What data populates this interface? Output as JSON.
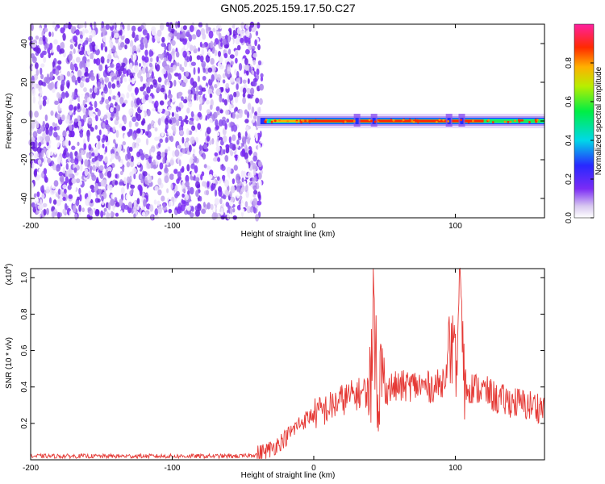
{
  "title": "GN05.2025.159.17.50.C27",
  "colors": {
    "signal": "#ff3333",
    "line": "#e53935",
    "noise": "#7b2cf5"
  },
  "chart_data": [
    {
      "type": "heatmap",
      "xlabel": "Height of straight line (km)",
      "ylabel": "Frequency (Hz)",
      "xlim": [
        -200,
        163
      ],
      "ylim": [
        -50,
        50
      ],
      "x_ticks": [
        "-200",
        "-100",
        "0",
        "100"
      ],
      "y_ticks": [
        "-40",
        "-20",
        "0",
        "20",
        "40"
      ],
      "colorbar": {
        "label": "Normalized spectral amplitude",
        "range": [
          0,
          1
        ],
        "ticks": [
          "0.0",
          "0.2",
          "0.4",
          "0.6",
          "0.8"
        ]
      },
      "noise_region_x": [
        -200,
        -40
      ],
      "signal_track": {
        "x_start": -40,
        "x_end": 163,
        "freq_hz": 0,
        "peak_band_x": [
          -10,
          120
        ]
      }
    },
    {
      "type": "line",
      "xlabel": "Height of straight line (km)",
      "ylabel": "SNR (10 * v/v)",
      "exponent_label": "(x10",
      "exponent_sup": "4",
      "exponent_close": ")",
      "xlim": [
        -200,
        163
      ],
      "ylim": [
        0,
        1.05
      ],
      "x_ticks": [
        "-200",
        "-100",
        "0",
        "100"
      ],
      "y_ticks": [
        "0.2",
        "0.4",
        "0.6",
        "0.8",
        "1.0"
      ],
      "series": [
        {
          "x": [
            -200,
            -150,
            -100,
            -50,
            -40,
            -30,
            -20,
            -10,
            0,
            10,
            20,
            30,
            40,
            42,
            45,
            50,
            60,
            70,
            80,
            90,
            98,
            100,
            104,
            106,
            110,
            120,
            125,
            130,
            140,
            150,
            160,
            163
          ],
          "y": [
            0.02,
            0.02,
            0.02,
            0.02,
            0.03,
            0.06,
            0.12,
            0.2,
            0.25,
            0.28,
            0.33,
            0.36,
            0.38,
            0.92,
            0.45,
            0.39,
            0.4,
            0.41,
            0.4,
            0.41,
            0.62,
            0.4,
            1.05,
            0.42,
            0.4,
            0.38,
            0.36,
            0.33,
            0.32,
            0.3,
            0.29,
            0.28
          ]
        }
      ]
    }
  ]
}
